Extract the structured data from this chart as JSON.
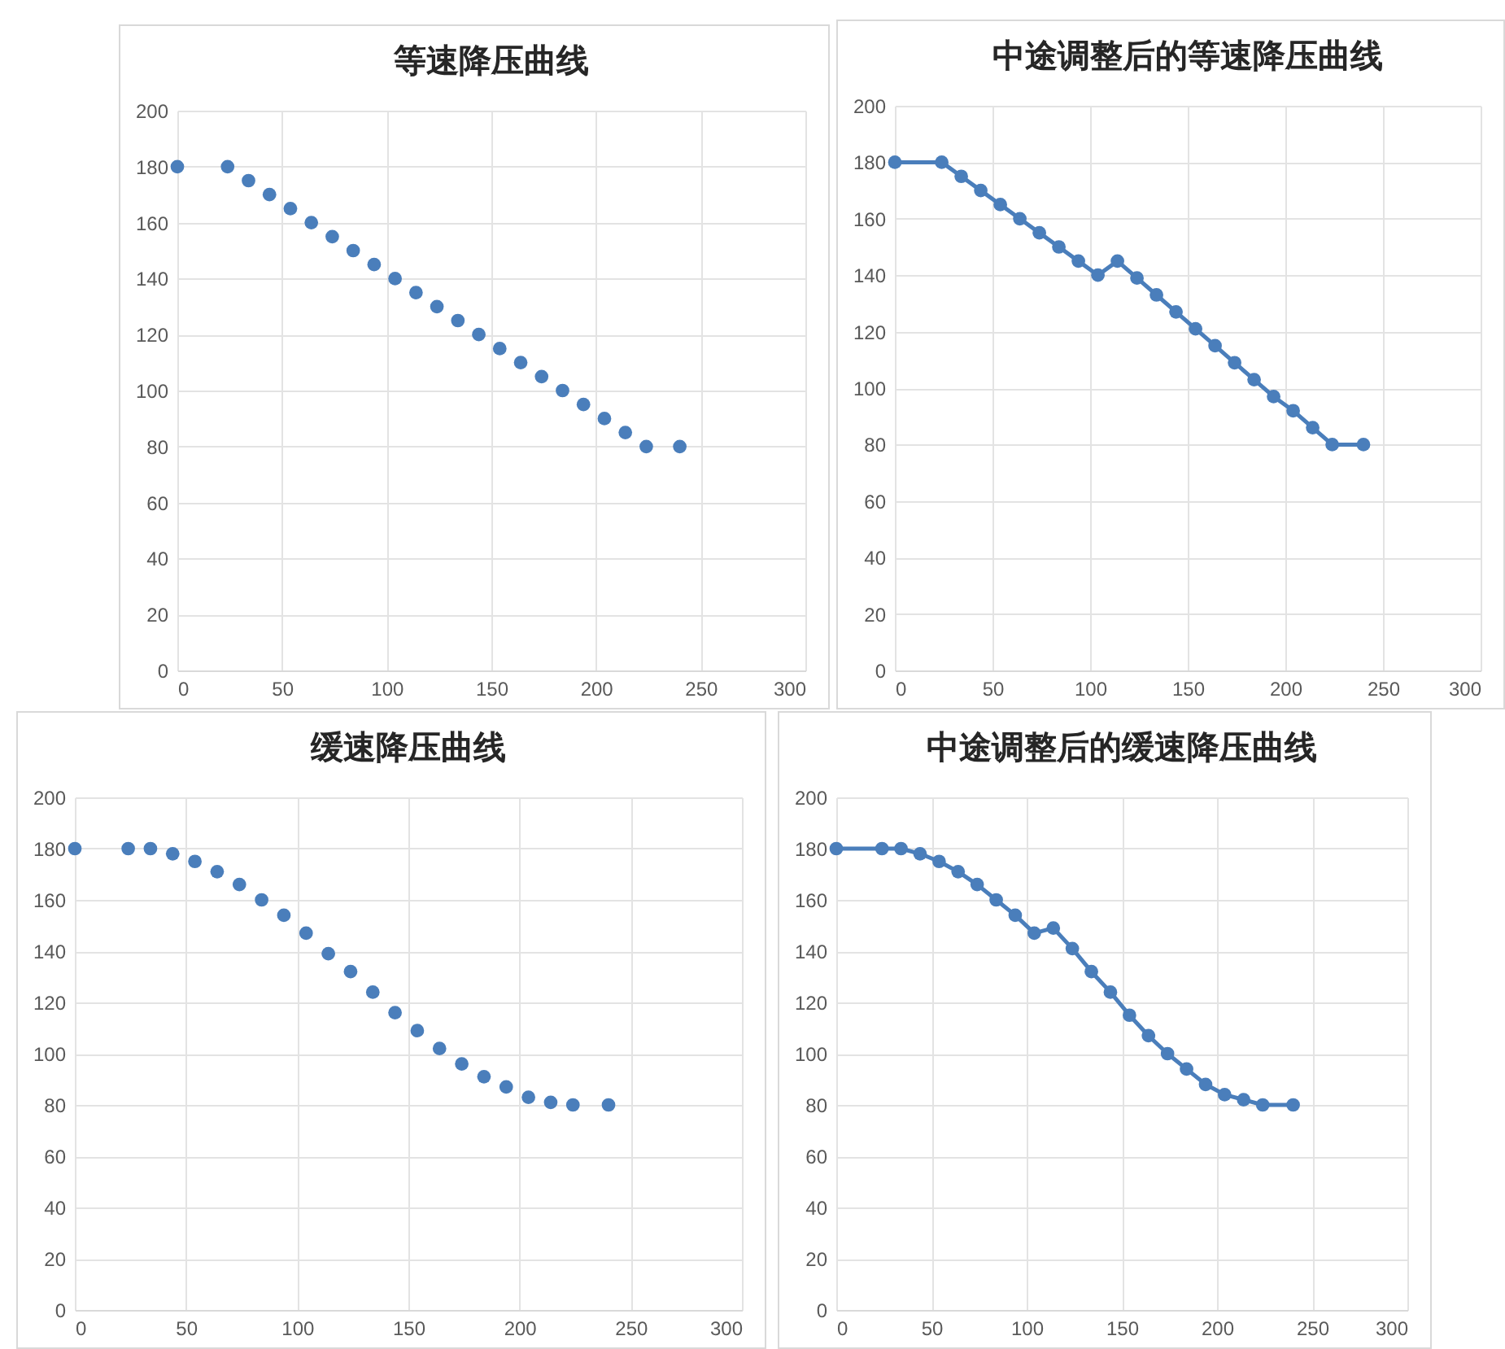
{
  "chart_data": [
    {
      "type": "scatter",
      "title": "等速降压曲线",
      "x": [
        0,
        24,
        34,
        44,
        54,
        64,
        74,
        84,
        94,
        104,
        114,
        124,
        134,
        144,
        154,
        164,
        174,
        184,
        194,
        204,
        214,
        224,
        240
      ],
      "series": [
        {
          "color": "#4a7ebb",
          "values": [
            180,
            180,
            175,
            170,
            165,
            160,
            155,
            150,
            145,
            140,
            135,
            130,
            125,
            120,
            115,
            110,
            105,
            100,
            95,
            90,
            85,
            80,
            80
          ]
        }
      ],
      "xlim": [
        0,
        300
      ],
      "xticks": [
        0,
        50,
        100,
        150,
        200,
        250,
        300
      ],
      "ylim": [
        0,
        200
      ],
      "yticks": [
        0,
        20,
        40,
        60,
        80,
        100,
        120,
        140,
        160,
        180,
        200
      ],
      "grid": true,
      "marker": "circle"
    },
    {
      "type": "line",
      "title": "中途调整后的等速降压曲线",
      "x": [
        0,
        24,
        34,
        44,
        54,
        64,
        74,
        84,
        94,
        104,
        114,
        124,
        134,
        144,
        154,
        164,
        174,
        184,
        194,
        204,
        214,
        224,
        240
      ],
      "series": [
        {
          "color": "#4a7ebb",
          "values": [
            180,
            180,
            175,
            170,
            165,
            160,
            155,
            150,
            145,
            140,
            145,
            139,
            133,
            127,
            121,
            115,
            109,
            103,
            97,
            92,
            86,
            80,
            80
          ]
        }
      ],
      "xlim": [
        0,
        300
      ],
      "xticks": [
        0,
        50,
        100,
        150,
        200,
        250,
        300
      ],
      "ylim": [
        0,
        200
      ],
      "yticks": [
        0,
        20,
        40,
        60,
        80,
        100,
        120,
        140,
        160,
        180,
        200
      ],
      "grid": true,
      "marker": "circle",
      "line_style": "solid"
    },
    {
      "type": "scatter",
      "title": "缓速降压曲线",
      "x": [
        0,
        24,
        34,
        44,
        54,
        64,
        74,
        84,
        94,
        104,
        114,
        124,
        134,
        144,
        154,
        164,
        174,
        184,
        194,
        204,
        214,
        224,
        240
      ],
      "series": [
        {
          "color": "#4a7ebb",
          "values": [
            180,
            180,
            180,
            178,
            175,
            171,
            166,
            160,
            154,
            147,
            139,
            132,
            124,
            116,
            109,
            102,
            96,
            91,
            87,
            83,
            81,
            80,
            80
          ]
        }
      ],
      "xlim": [
        0,
        300
      ],
      "xticks": [
        0,
        50,
        100,
        150,
        200,
        250,
        300
      ],
      "ylim": [
        0,
        200
      ],
      "yticks": [
        0,
        20,
        40,
        60,
        80,
        100,
        120,
        140,
        160,
        180,
        200
      ],
      "grid": true,
      "marker": "circle"
    },
    {
      "type": "line",
      "title": "中途调整后的缓速降压曲线",
      "x": [
        0,
        24,
        34,
        44,
        54,
        64,
        74,
        84,
        94,
        104,
        114,
        124,
        134,
        144,
        154,
        164,
        174,
        184,
        194,
        204,
        214,
        224,
        240
      ],
      "series": [
        {
          "color": "#4a7ebb",
          "values": [
            180,
            180,
            180,
            178,
            175,
            171,
            166,
            160,
            154,
            147,
            149,
            141,
            132,
            124,
            115,
            107,
            100,
            94,
            88,
            84,
            82,
            80,
            80
          ]
        }
      ],
      "xlim": [
        0,
        300
      ],
      "xticks": [
        0,
        50,
        100,
        150,
        200,
        250,
        300
      ],
      "ylim": [
        0,
        200
      ],
      "yticks": [
        0,
        20,
        40,
        60,
        80,
        100,
        120,
        140,
        160,
        180,
        200
      ],
      "grid": true,
      "marker": "circle",
      "line_style": "solid"
    }
  ]
}
